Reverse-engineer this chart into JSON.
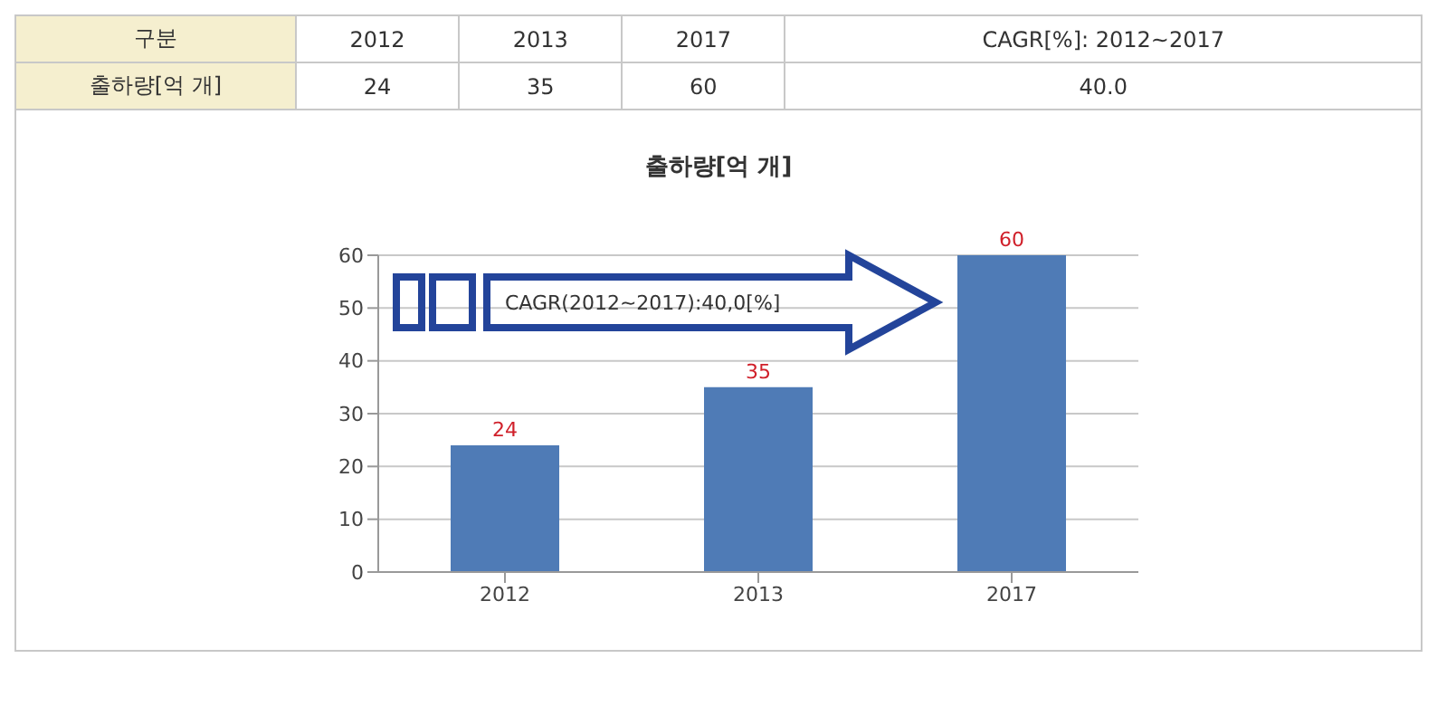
{
  "chart_data": [
    {
      "type": "other",
      "categories": [
        "구분",
        "2012",
        "2013",
        "2017",
        "CAGR[%]: 2012~2017"
      ],
      "annotations": [
        "출하량[억 개]",
        "24",
        "35",
        "60",
        "40.0"
      ]
    },
    {
      "type": "bar",
      "title": "출하량[억 개]",
      "categories": [
        "2012",
        "2013",
        "2017"
      ],
      "values": [
        24,
        35,
        60
      ],
      "color": "#4f7bb6",
      "ylim": [
        0,
        60
      ],
      "yticks": [
        0,
        10,
        20,
        30,
        40,
        50,
        60
      ],
      "grid": "y",
      "data_labels": true,
      "annotations": [
        "CAGR(2012~2017):40,0[%]"
      ]
    }
  ]
}
